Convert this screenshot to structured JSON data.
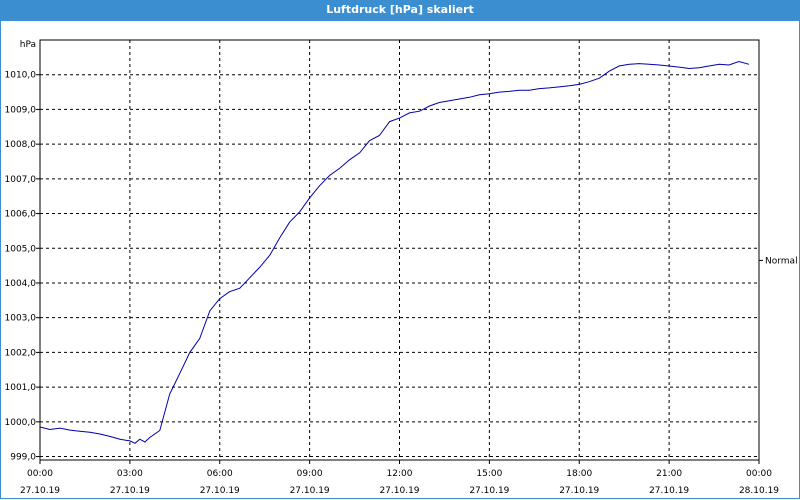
{
  "window": {
    "title": "Luftdruck [hPa] skaliert"
  },
  "chart_data": {
    "type": "line",
    "title": "Luftdruck [hPa] skaliert",
    "ylabel": "hPa",
    "xlabel": "",
    "ylim": [
      998.9,
      1011
    ],
    "xlim_hours": [
      0,
      24
    ],
    "grid": true,
    "y_ticks": [
      "999,0",
      "1000,0",
      "1001,0",
      "1002,0",
      "1003,0",
      "1004,0",
      "1005,0",
      "1006,0",
      "1007,0",
      "1008,0",
      "1009,0",
      "1010,0"
    ],
    "y_tick_values": [
      999,
      1000,
      1001,
      1002,
      1003,
      1004,
      1005,
      1006,
      1007,
      1008,
      1009,
      1010
    ],
    "x_ticks": [
      {
        "time": "00:00",
        "date": "27.10.19",
        "hour": 0
      },
      {
        "time": "03:00",
        "date": "27.10.19",
        "hour": 3
      },
      {
        "time": "06:00",
        "date": "27.10.19",
        "hour": 6
      },
      {
        "time": "09:00",
        "date": "27.10.19",
        "hour": 9
      },
      {
        "time": "12:00",
        "date": "27.10.19",
        "hour": 12
      },
      {
        "time": "15:00",
        "date": "27.10.19",
        "hour": 15
      },
      {
        "time": "18:00",
        "date": "27.10.19",
        "hour": 18
      },
      {
        "time": "21:00",
        "date": "27.10.19",
        "hour": 21
      },
      {
        "time": "00:00",
        "date": "28.10.19",
        "hour": 24
      }
    ],
    "annotation": "Normal",
    "annotation_value": 1004.65,
    "series": [
      {
        "color": "#0000aa",
        "x": [
          0.0,
          0.33,
          0.67,
          1.0,
          1.33,
          1.67,
          2.0,
          2.33,
          2.67,
          3.0,
          3.17,
          3.33,
          3.5,
          3.67,
          4.0,
          4.33,
          4.5,
          4.67,
          5.0,
          5.33,
          5.67,
          6.0,
          6.33,
          6.67,
          7.0,
          7.33,
          7.67,
          8.0,
          8.33,
          8.67,
          9.0,
          9.33,
          9.67,
          10.0,
          10.33,
          10.67,
          11.0,
          11.33,
          11.67,
          12.0,
          12.33,
          12.67,
          13.0,
          13.33,
          13.67,
          14.0,
          14.33,
          14.67,
          15.0,
          15.33,
          15.67,
          16.0,
          16.33,
          16.67,
          17.0,
          17.33,
          17.67,
          18.0,
          18.33,
          18.67,
          19.0,
          19.33,
          19.67,
          20.0,
          20.33,
          20.67,
          21.0,
          21.33,
          21.67,
          22.0,
          22.33,
          22.67,
          23.0,
          23.33,
          23.67
        ],
        "y": [
          999.85,
          999.78,
          999.82,
          999.76,
          999.73,
          999.7,
          999.65,
          999.58,
          999.5,
          999.45,
          999.38,
          999.5,
          999.42,
          999.55,
          999.75,
          1000.8,
          1001.1,
          1001.4,
          1002.0,
          1002.4,
          1003.2,
          1003.55,
          1003.75,
          1003.85,
          1004.15,
          1004.45,
          1004.8,
          1005.3,
          1005.75,
          1006.05,
          1006.45,
          1006.8,
          1007.1,
          1007.3,
          1007.55,
          1007.75,
          1008.1,
          1008.25,
          1008.65,
          1008.75,
          1008.9,
          1008.95,
          1009.1,
          1009.2,
          1009.25,
          1009.3,
          1009.35,
          1009.42,
          1009.45,
          1009.5,
          1009.52,
          1009.55,
          1009.55,
          1009.6,
          1009.62,
          1009.65,
          1009.68,
          1009.72,
          1009.8,
          1009.9,
          1010.1,
          1010.25,
          1010.3,
          1010.32,
          1010.3,
          1010.28,
          1010.25,
          1010.22,
          1010.18,
          1010.2,
          1010.25,
          1010.3,
          1010.28,
          1010.38,
          1010.3
        ]
      }
    ]
  }
}
